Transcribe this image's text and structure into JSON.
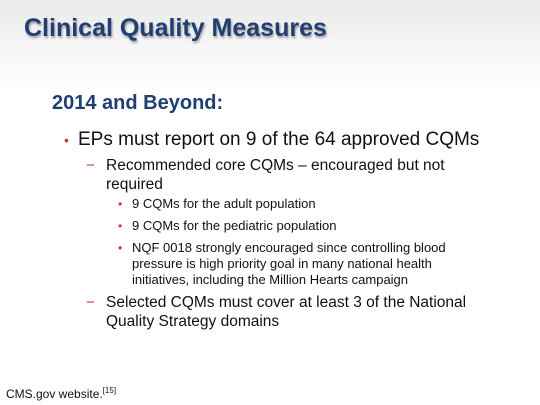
{
  "slide": {
    "title": "Clinical Quality Measures",
    "heading": "2014 and Beyond:",
    "bullets": {
      "main": "EPs must report on 9 of the 64 approved CQMs",
      "sub_core": "Recommended core CQMs – encouraged but not required",
      "adult": "9 CQMs for the adult population",
      "pediatric": "9 CQMs for the pediatric population",
      "nqf": "NQF 0018 strongly encouraged since controlling blood pressure is high priority goal in many national health initiatives, including the Million Hearts campaign",
      "domains": "Selected CQMs must cover at least 3 of the National Quality Strategy domains"
    },
    "markers": {
      "level1": "•",
      "level2": "−",
      "level3": "•"
    },
    "citation": {
      "text": "CMS.gov website.",
      "ref": "[15]"
    }
  },
  "colors": {
    "title": "#1f3f73",
    "bullet_marker": "#c0392b",
    "body_text": "#111111"
  }
}
